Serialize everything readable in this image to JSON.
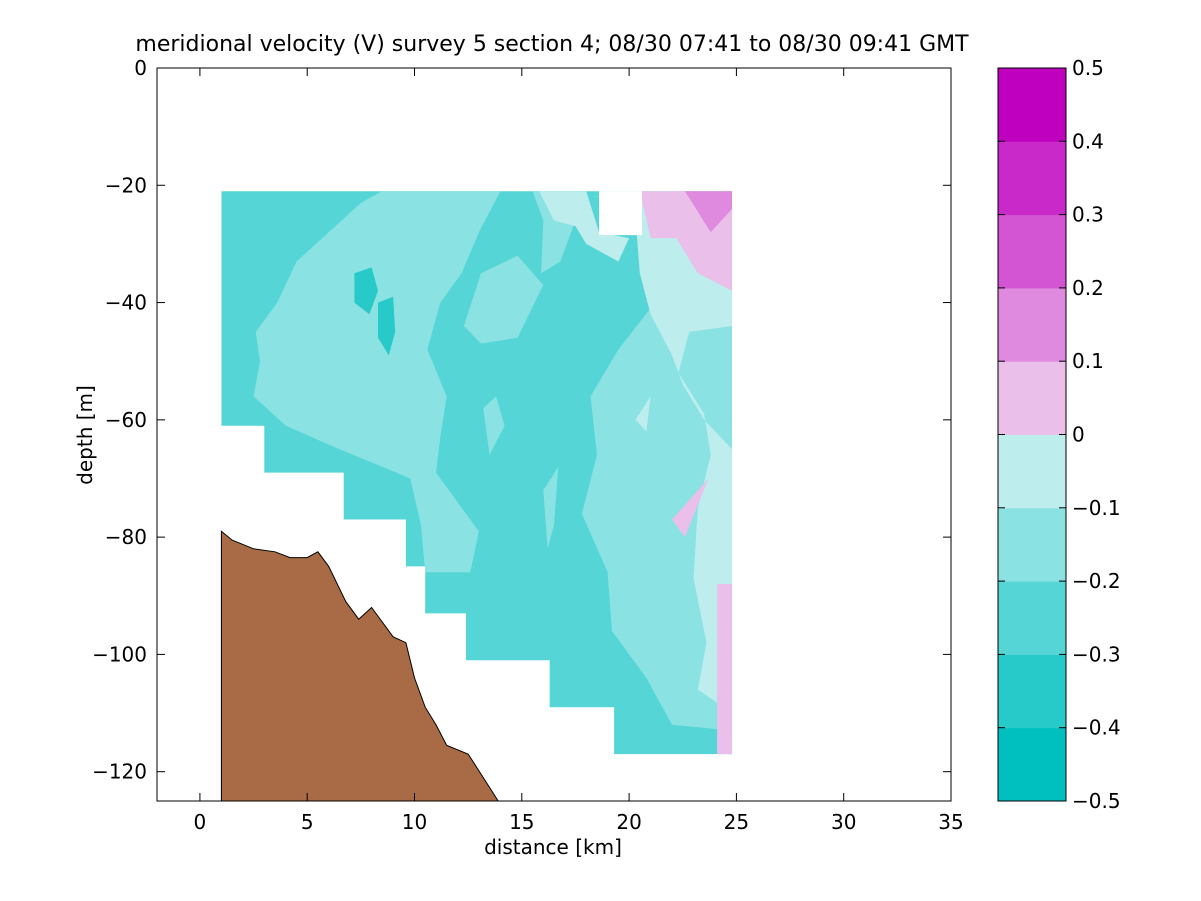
{
  "chart_data": {
    "type": "filled-contour",
    "title": "meridional velocity (V) survey 5 section 4; 08/30 07:41 to 08/30 09:41 GMT",
    "xlabel": "distance [km]",
    "ylabel": "depth [m]",
    "xlim": [
      -2,
      35
    ],
    "ylim": [
      -125,
      0
    ],
    "xticks": [
      0,
      5,
      10,
      15,
      20,
      25,
      30,
      35
    ],
    "yticks": [
      0,
      -20,
      -40,
      -60,
      -80,
      -100,
      -120
    ],
    "colorbar": {
      "levels": [
        -0.5,
        -0.4,
        -0.3,
        -0.2,
        -0.1,
        0,
        0.1,
        0.2,
        0.3,
        0.4,
        0.5
      ],
      "tick_labels": [
        "0.5",
        "0.4",
        "0.3",
        "0.2",
        "0.1",
        "0",
        "−0.1",
        "−0.2",
        "−0.3",
        "−0.4",
        "−0.5"
      ],
      "colors": [
        "#00bfbf",
        "#28c9c9",
        "#55d5d5",
        "#8ae2e2",
        "#bdeded",
        "#eabfea",
        "#df8ade",
        "#d455d3",
        "#c929c9",
        "#bf00bf"
      ]
    },
    "data_region": {
      "x_range": [
        1,
        24.8
      ],
      "top_depth": -21,
      "bottom_profile_x": [
        1,
        3,
        6.7,
        9.6,
        10.5,
        12.4,
        16.3,
        19.3,
        23.6,
        24.8
      ],
      "bottom_profile_depth": [
        -53,
        -61,
        -69,
        -77,
        -85,
        -93,
        -101,
        -109,
        -117,
        -117
      ]
    },
    "bathymetry": {
      "color": "#a86b45",
      "x": [
        1,
        1.5,
        2.5,
        3.5,
        4.2,
        5,
        5.5,
        6,
        6.8,
        7.4,
        8,
        9,
        9.6,
        10,
        10.5,
        11,
        11.5,
        12.5,
        13.2,
        13.9
      ],
      "depth": [
        -79,
        -80.5,
        -82,
        -82.5,
        -83.5,
        -83.5,
        -82.5,
        -85,
        -91,
        -94,
        -92,
        -97,
        -98,
        -104,
        -109,
        -112,
        -115.5,
        -117,
        -121,
        -125
      ]
    }
  }
}
